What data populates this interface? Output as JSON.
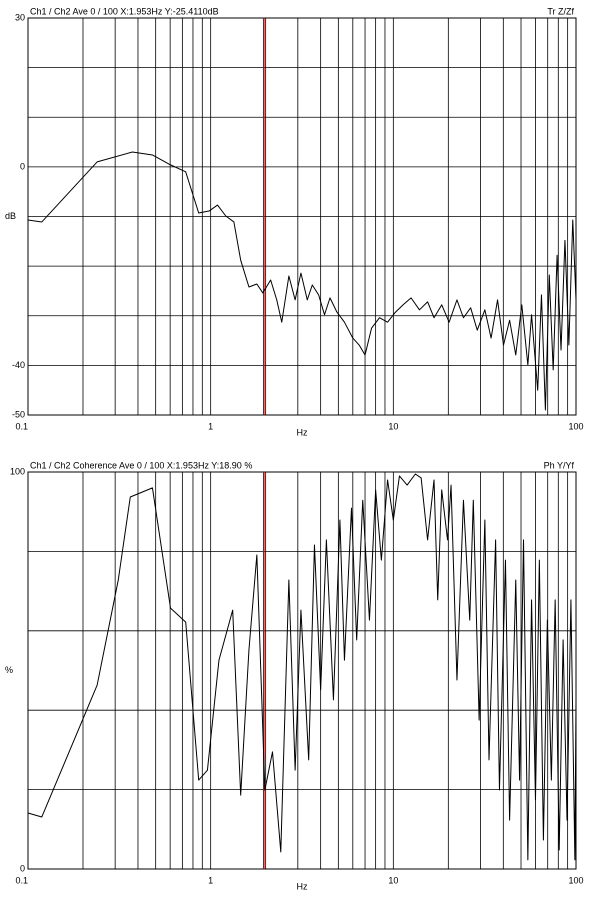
{
  "chart_data": [
    {
      "type": "line",
      "title": "Ch1 / Ch2  Ave 0 / 100  X:1.953Hz  Y:-25.4110dB",
      "subtitle": "Tr Z/Zf",
      "xlabel": "Hz",
      "ylabel": "dB",
      "xscale": "log",
      "color": "#000000",
      "cursor_x": 1.953,
      "cursor_color": "#cc0000",
      "xlim": [
        0.1,
        100
      ],
      "xticks": [
        0.1,
        1,
        10,
        100
      ],
      "xgrid": [
        0.2,
        0.3,
        0.4,
        0.5,
        0.6,
        0.7,
        0.8,
        0.9,
        1,
        2,
        3,
        4,
        5,
        6,
        7,
        8,
        9,
        10,
        20,
        30,
        40,
        50,
        60,
        70,
        80,
        90
      ],
      "ylim": [
        -50,
        30
      ],
      "yticks": [
        30,
        0,
        -40,
        -50
      ],
      "ygrid": [
        20,
        10,
        0,
        -10,
        -20,
        -30,
        -40
      ],
      "x": [
        0.1,
        0.119,
        0.239,
        0.373,
        0.48,
        0.603,
        0.73,
        0.86,
        0.98,
        1.09,
        1.21,
        1.34,
        1.46,
        1.62,
        1.79,
        1.93,
        2.13,
        2.3,
        2.45,
        2.68,
        2.9,
        3.12,
        3.38,
        3.6,
        3.9,
        4.2,
        4.5,
        4.9,
        5.4,
        6.0,
        6.5,
        7.0,
        7.6,
        8.4,
        9.3,
        10.2,
        11.3,
        12.5,
        13.9,
        15.4,
        16.7,
        18.4,
        20.2,
        22.3,
        24.2,
        26.5,
        28.8,
        31.7,
        34.3,
        37.2,
        40.1,
        43.3,
        46.8,
        50.5,
        54.5,
        57.1,
        61.7,
        64.7,
        68.0,
        71.4,
        75.0,
        78.8,
        82.8,
        87.0,
        91.4,
        96.0,
        100
      ],
      "values": [
        -10.7,
        -11.1,
        1.0,
        3.0,
        2.4,
        0.4,
        -1.0,
        -9.3,
        -8.9,
        -7.7,
        -9.9,
        -11.1,
        -18.8,
        -24.2,
        -23.6,
        -25.4,
        -22.8,
        -26.8,
        -31.3,
        -22.0,
        -26.8,
        -21.4,
        -26.8,
        -23.8,
        -25.8,
        -29.8,
        -26.4,
        -29.2,
        -31.3,
        -34.5,
        -35.9,
        -37.9,
        -32.5,
        -30.4,
        -31.3,
        -29.4,
        -27.8,
        -26.4,
        -28.8,
        -27.2,
        -30.4,
        -27.8,
        -31.3,
        -26.8,
        -30.4,
        -28.4,
        -32.9,
        -28.8,
        -34.5,
        -26.8,
        -35.9,
        -30.9,
        -37.9,
        -27.8,
        -39.9,
        -29.8,
        -45.0,
        -25.8,
        -49.0,
        -21.8,
        -40.9,
        -17.8,
        -36.9,
        -14.8,
        -35.9,
        -10.7,
        -26.8
      ]
    },
    {
      "type": "line",
      "title": "Ch1 / Ch2  Coherence Ave 0 / 100  X:1.953Hz  Y:18.90 %",
      "subtitle": "Ph Y/Yf",
      "xlabel": "Hz",
      "ylabel": "%",
      "xscale": "log",
      "color": "#000000",
      "cursor_x": 1.953,
      "cursor_color": "#cc0000",
      "xlim": [
        0.1,
        100
      ],
      "xticks": [
        0.1,
        1,
        10,
        100
      ],
      "xgrid": [
        0.2,
        0.3,
        0.4,
        0.5,
        0.6,
        0.7,
        0.8,
        0.9,
        1,
        2,
        3,
        4,
        5,
        6,
        7,
        8,
        9,
        10,
        20,
        30,
        40,
        50,
        60,
        70,
        80,
        90
      ],
      "ylim": [
        0,
        100
      ],
      "yticks": [
        100,
        0
      ],
      "ygrid": [
        80,
        60,
        40,
        20
      ],
      "x": [
        0.1,
        0.119,
        0.239,
        0.312,
        0.363,
        0.48,
        0.603,
        0.73,
        0.86,
        0.96,
        1.11,
        1.32,
        1.46,
        1.62,
        1.79,
        1.98,
        2.18,
        2.42,
        2.68,
        2.9,
        3.12,
        3.44,
        3.7,
        4.0,
        4.3,
        4.7,
        5.1,
        5.4,
        5.9,
        6.3,
        6.8,
        7.4,
        8.0,
        8.6,
        9.3,
        10.0,
        10.8,
        11.9,
        13.2,
        14.2,
        15.4,
        16.7,
        17.5,
        18.4,
        19.8,
        20.7,
        22.3,
        24.2,
        26.2,
        27.4,
        29.5,
        31.7,
        33.4,
        36.3,
        38.1,
        41.1,
        43.3,
        46.8,
        49.1,
        51.6,
        54.5,
        57.1,
        60.0,
        63.0,
        66.3,
        69.7,
        73.3,
        76.9,
        80.9,
        85.0,
        89.3,
        93.8,
        98.6,
        100
      ],
      "values": [
        14.1,
        13.1,
        46.3,
        72.8,
        93.7,
        96.0,
        65.7,
        62.2,
        22.4,
        24.9,
        52.6,
        65.2,
        18.6,
        55.2,
        79.1,
        19.9,
        29.5,
        4.3,
        72.8,
        24.9,
        65.2,
        27.5,
        81.6,
        45.1,
        82.9,
        42.6,
        87.9,
        52.6,
        90.9,
        57.7,
        92.9,
        62.7,
        95.5,
        77.8,
        98.0,
        87.9,
        99.0,
        96.7,
        99.5,
        98.5,
        82.9,
        98.0,
        67.8,
        95.5,
        82.9,
        96.7,
        47.6,
        92.9,
        62.7,
        92.9,
        37.5,
        87.9,
        27.5,
        82.9,
        19.9,
        77.8,
        12.3,
        72.8,
        22.4,
        82.9,
        2.3,
        67.8,
        17.4,
        77.8,
        7.3,
        62.7,
        22.4,
        67.8,
        4.8,
        57.7,
        12.3,
        67.8,
        2.3,
        42.6
      ]
    }
  ]
}
